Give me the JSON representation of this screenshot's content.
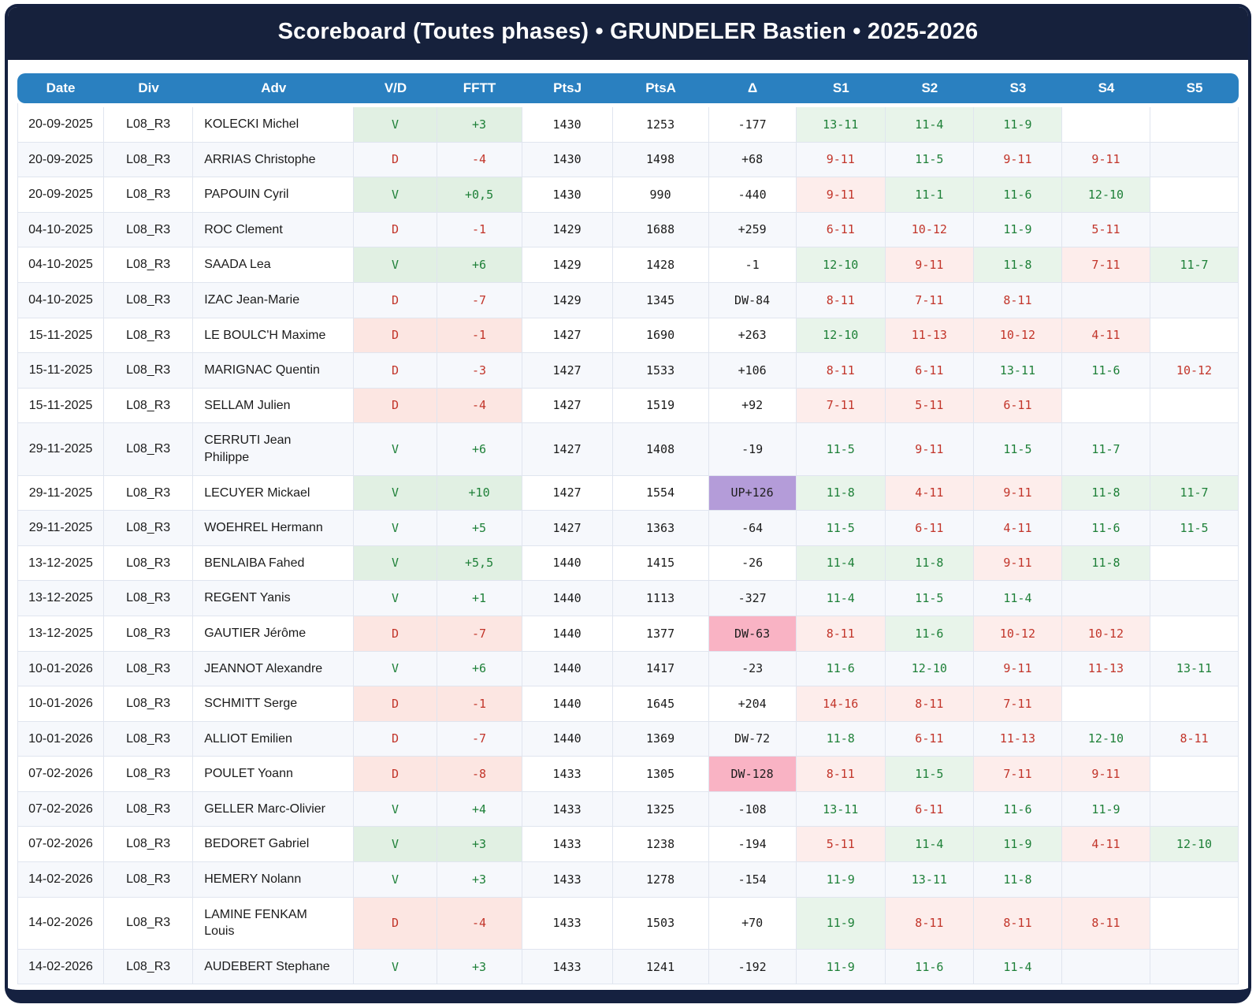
{
  "title": "Scoreboard (Toutes phases) • GRUNDELER Bastien • 2025-2026",
  "colors": {
    "frame": "#152140",
    "title_bg": "#16213c",
    "header_bg": "#2a80c0",
    "win_text": "#1e8038",
    "loss_text": "#c2352a",
    "win_bg": "#e8f4ea",
    "loss_bg": "#fdedeb",
    "dw_bg": "#f9b3c4",
    "up_bg": "#b49cd9"
  },
  "table": {
    "columns": [
      {
        "key": "date",
        "label": "Date"
      },
      {
        "key": "div",
        "label": "Div"
      },
      {
        "key": "adv",
        "label": "Adv"
      },
      {
        "key": "vd",
        "label": "V/D"
      },
      {
        "key": "fftt",
        "label": "FFTT"
      },
      {
        "key": "ptsj",
        "label": "PtsJ"
      },
      {
        "key": "ptsa",
        "label": "PtsA"
      },
      {
        "key": "delta",
        "label": "Δ"
      },
      {
        "key": "s1",
        "label": "S1"
      },
      {
        "key": "s2",
        "label": "S2"
      },
      {
        "key": "s3",
        "label": "S3"
      },
      {
        "key": "s4",
        "label": "S4"
      },
      {
        "key": "s5",
        "label": "S5"
      }
    ],
    "rows": [
      {
        "date": "20-09-2025",
        "div": "L08_R3",
        "adv": "KOLECKI Michel",
        "vd": "V",
        "fftt": "+3",
        "ptsj": "1430",
        "ptsa": "1253",
        "delta": "-177",
        "sets": [
          "13-11",
          "11-4",
          "11-9",
          "",
          ""
        ]
      },
      {
        "date": "20-09-2025",
        "div": "L08_R3",
        "adv": "ARRIAS Christophe",
        "vd": "D",
        "fftt": "-4",
        "ptsj": "1430",
        "ptsa": "1498",
        "delta": "+68",
        "sets": [
          "9-11",
          "11-5",
          "9-11",
          "9-11",
          ""
        ]
      },
      {
        "date": "20-09-2025",
        "div": "L08_R3",
        "adv": "PAPOUIN Cyril",
        "vd": "V",
        "fftt": "+0,5",
        "ptsj": "1430",
        "ptsa": "990",
        "delta": "-440",
        "sets": [
          "9-11",
          "11-1",
          "11-6",
          "12-10",
          ""
        ]
      },
      {
        "date": "04-10-2025",
        "div": "L08_R3",
        "adv": "ROC Clement",
        "vd": "D",
        "fftt": "-1",
        "ptsj": "1429",
        "ptsa": "1688",
        "delta": "+259",
        "sets": [
          "6-11",
          "10-12",
          "11-9",
          "5-11",
          ""
        ]
      },
      {
        "date": "04-10-2025",
        "div": "L08_R3",
        "adv": "SAADA Lea",
        "vd": "V",
        "fftt": "+6",
        "ptsj": "1429",
        "ptsa": "1428",
        "delta": "-1",
        "sets": [
          "12-10",
          "9-11",
          "11-8",
          "7-11",
          "11-7"
        ]
      },
      {
        "date": "04-10-2025",
        "div": "L08_R3",
        "adv": "IZAC Jean-Marie",
        "vd": "D",
        "fftt": "-7",
        "ptsj": "1429",
        "ptsa": "1345",
        "delta": "DW-84",
        "sets": [
          "8-11",
          "7-11",
          "8-11",
          "",
          ""
        ]
      },
      {
        "date": "15-11-2025",
        "div": "L08_R3",
        "adv": "LE BOULC'H Maxime",
        "vd": "D",
        "fftt": "-1",
        "ptsj": "1427",
        "ptsa": "1690",
        "delta": "+263",
        "sets": [
          "12-10",
          "11-13",
          "10-12",
          "4-11",
          ""
        ]
      },
      {
        "date": "15-11-2025",
        "div": "L08_R3",
        "adv": "MARIGNAC Quentin",
        "vd": "D",
        "fftt": "-3",
        "ptsj": "1427",
        "ptsa": "1533",
        "delta": "+106",
        "sets": [
          "8-11",
          "6-11",
          "13-11",
          "11-6",
          "10-12"
        ]
      },
      {
        "date": "15-11-2025",
        "div": "L08_R3",
        "adv": "SELLAM Julien",
        "vd": "D",
        "fftt": "-4",
        "ptsj": "1427",
        "ptsa": "1519",
        "delta": "+92",
        "sets": [
          "7-11",
          "5-11",
          "6-11",
          "",
          ""
        ]
      },
      {
        "date": "29-11-2025",
        "div": "L08_R3",
        "adv": "CERRUTI Jean\nPhilippe",
        "vd": "V",
        "fftt": "+6",
        "ptsj": "1427",
        "ptsa": "1408",
        "delta": "-19",
        "sets": [
          "11-5",
          "9-11",
          "11-5",
          "11-7",
          ""
        ]
      },
      {
        "date": "29-11-2025",
        "div": "L08_R3",
        "adv": "LECUYER Mickael",
        "vd": "V",
        "fftt": "+10",
        "ptsj": "1427",
        "ptsa": "1554",
        "delta": "UP+126",
        "sets": [
          "11-8",
          "4-11",
          "9-11",
          "11-8",
          "11-7"
        ]
      },
      {
        "date": "29-11-2025",
        "div": "L08_R3",
        "adv": "WOEHREL Hermann",
        "vd": "V",
        "fftt": "+5",
        "ptsj": "1427",
        "ptsa": "1363",
        "delta": "-64",
        "sets": [
          "11-5",
          "6-11",
          "4-11",
          "11-6",
          "11-5"
        ]
      },
      {
        "date": "13-12-2025",
        "div": "L08_R3",
        "adv": "BENLAIBA Fahed",
        "vd": "V",
        "fftt": "+5,5",
        "ptsj": "1440",
        "ptsa": "1415",
        "delta": "-26",
        "sets": [
          "11-4",
          "11-8",
          "9-11",
          "11-8",
          ""
        ]
      },
      {
        "date": "13-12-2025",
        "div": "L08_R3",
        "adv": "REGENT Yanis",
        "vd": "V",
        "fftt": "+1",
        "ptsj": "1440",
        "ptsa": "1113",
        "delta": "-327",
        "sets": [
          "11-4",
          "11-5",
          "11-4",
          "",
          ""
        ]
      },
      {
        "date": "13-12-2025",
        "div": "L08_R3",
        "adv": "GAUTIER Jérôme",
        "vd": "D",
        "fftt": "-7",
        "ptsj": "1440",
        "ptsa": "1377",
        "delta": "DW-63",
        "sets": [
          "8-11",
          "11-6",
          "10-12",
          "10-12",
          ""
        ]
      },
      {
        "date": "10-01-2026",
        "div": "L08_R3",
        "adv": "JEANNOT Alexandre",
        "vd": "V",
        "fftt": "+6",
        "ptsj": "1440",
        "ptsa": "1417",
        "delta": "-23",
        "sets": [
          "11-6",
          "12-10",
          "9-11",
          "11-13",
          "13-11"
        ]
      },
      {
        "date": "10-01-2026",
        "div": "L08_R3",
        "adv": "SCHMITT Serge",
        "vd": "D",
        "fftt": "-1",
        "ptsj": "1440",
        "ptsa": "1645",
        "delta": "+204",
        "sets": [
          "14-16",
          "8-11",
          "7-11",
          "",
          ""
        ]
      },
      {
        "date": "10-01-2026",
        "div": "L08_R3",
        "adv": "ALLIOT Emilien",
        "vd": "D",
        "fftt": "-7",
        "ptsj": "1440",
        "ptsa": "1369",
        "delta": "DW-72",
        "sets": [
          "11-8",
          "6-11",
          "11-13",
          "12-10",
          "8-11"
        ]
      },
      {
        "date": "07-02-2026",
        "div": "L08_R3",
        "adv": "POULET Yoann",
        "vd": "D",
        "fftt": "-8",
        "ptsj": "1433",
        "ptsa": "1305",
        "delta": "DW-128",
        "sets": [
          "8-11",
          "11-5",
          "7-11",
          "9-11",
          ""
        ]
      },
      {
        "date": "07-02-2026",
        "div": "L08_R3",
        "adv": "GELLER Marc-Olivier",
        "vd": "V",
        "fftt": "+4",
        "ptsj": "1433",
        "ptsa": "1325",
        "delta": "-108",
        "sets": [
          "13-11",
          "6-11",
          "11-6",
          "11-9",
          ""
        ]
      },
      {
        "date": "07-02-2026",
        "div": "L08_R3",
        "adv": "BEDORET Gabriel",
        "vd": "V",
        "fftt": "+3",
        "ptsj": "1433",
        "ptsa": "1238",
        "delta": "-194",
        "sets": [
          "5-11",
          "11-4",
          "11-9",
          "4-11",
          "12-10"
        ]
      },
      {
        "date": "14-02-2026",
        "div": "L08_R3",
        "adv": "HEMERY Nolann",
        "vd": "V",
        "fftt": "+3",
        "ptsj": "1433",
        "ptsa": "1278",
        "delta": "-154",
        "sets": [
          "11-9",
          "13-11",
          "11-8",
          "",
          ""
        ]
      },
      {
        "date": "14-02-2026",
        "div": "L08_R3",
        "adv": "LAMINE FENKAM\nLouis",
        "vd": "D",
        "fftt": "-4",
        "ptsj": "1433",
        "ptsa": "1503",
        "delta": "+70",
        "sets": [
          "11-9",
          "8-11",
          "8-11",
          "8-11",
          ""
        ]
      },
      {
        "date": "14-02-2026",
        "div": "L08_R3",
        "adv": "AUDEBERT Stephane",
        "vd": "V",
        "fftt": "+3",
        "ptsj": "1433",
        "ptsa": "1241",
        "delta": "-192",
        "sets": [
          "11-9",
          "11-6",
          "11-4",
          "",
          ""
        ]
      }
    ]
  }
}
